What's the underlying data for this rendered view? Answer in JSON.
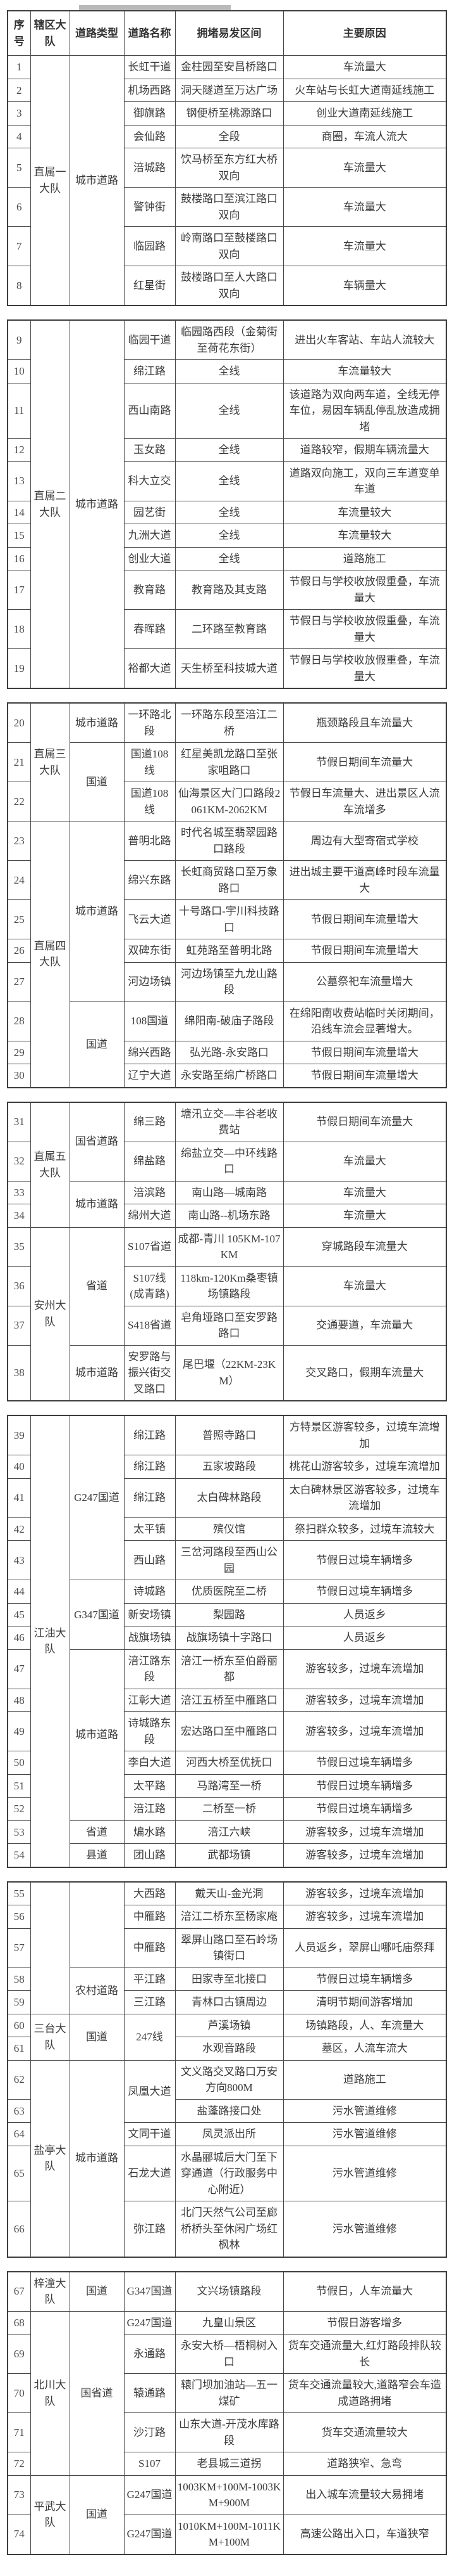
{
  "page": {
    "top_bar_color": "#b9b9b9",
    "text_color": "#3b3b3b",
    "border_color": "#474747"
  },
  "table": {
    "headers": [
      "序号",
      "辖区大队",
      "道路类型",
      "道路名称",
      "拥堵易发区间",
      "主要原因"
    ],
    "sections": [
      {
        "with_header": true,
        "rows": [
          [
            "1",
            {
              "t": "直属一大队",
              "rs": 8
            },
            {
              "t": "城市道路",
              "rs": 8
            },
            "长虹干道",
            "金柱园至安昌桥路口",
            "车流量大"
          ],
          [
            "2",
            null,
            null,
            "机场西路",
            "洞天隧道至万达广场",
            "火车站与长虹大道南延线施工"
          ],
          [
            "3",
            null,
            null,
            "御旗路",
            "钢便桥至桃源路口",
            "创业大道南延线施工"
          ],
          [
            "4",
            null,
            null,
            "会仙路",
            "全段",
            "商圈，车流人流大"
          ],
          [
            "5",
            null,
            null,
            "涪城路",
            "饮马桥至东方红大桥双向",
            "车流量大"
          ],
          [
            "6",
            null,
            null,
            "警钟街",
            "鼓楼路口至滨江路口双向",
            "车流量大"
          ],
          [
            "7",
            null,
            null,
            "临园路",
            "岭南路口至鼓楼路口双向",
            "车流量大"
          ],
          [
            "8",
            null,
            null,
            "红星街",
            "鼓楼路口至人大路口双向",
            "车辆量大"
          ]
        ]
      },
      {
        "with_header": false,
        "rows": [
          [
            "9",
            {
              "t": "直属二大队",
              "rs": 11
            },
            {
              "t": "城市道路",
              "rs": 11
            },
            "临园干道",
            "临园路西段（金菊街至荷花东街）",
            "进出火车客站、车站人流较大"
          ],
          [
            "10",
            null,
            null,
            "绵江路",
            "全线",
            "车流量较大"
          ],
          [
            "11",
            null,
            null,
            "西山南路",
            "全线",
            "该道路为双向两车道，全线无停车位，易因车辆乱停乱放造成拥堵"
          ],
          [
            "12",
            null,
            null,
            "玉女路",
            "全线",
            "道路较窄，假期车辆流量大"
          ],
          [
            "13",
            null,
            null,
            "科大立交",
            "全线",
            "道路双向施工，双向三车道变单车道"
          ],
          [
            "14",
            null,
            null,
            "园艺街",
            "全线",
            "车流量较大"
          ],
          [
            "15",
            null,
            null,
            "九洲大道",
            "全线",
            "车流量较大"
          ],
          [
            "16",
            null,
            null,
            "创业大道",
            "全线",
            "道路施工"
          ],
          [
            "17",
            null,
            null,
            "教育路",
            "教育路及其支路",
            "节假日与学校收放假重叠，车流量大"
          ],
          [
            "18",
            null,
            null,
            "春晖路",
            "二环路至教育路",
            "节假日与学校收放假重叠，车流量大"
          ],
          [
            "19",
            null,
            null,
            "裕都大道",
            "天生桥至科技城大道",
            "节假日与学校收放假重叠，车流量大"
          ]
        ]
      },
      {
        "with_header": false,
        "rows": [
          [
            "20",
            {
              "t": "直属三大队",
              "rs": 3
            },
            "城市道路",
            "一环路北段",
            "一环路东段至涪江二桥",
            "瓶颈路段且车流量大"
          ],
          [
            "21",
            null,
            {
              "t": "国道",
              "rs": 2
            },
            "国道108线",
            "红星美凯龙路口至张家咀路口",
            "节假日期间车流量大"
          ],
          [
            "22",
            null,
            null,
            "国道108线",
            "仙海景区大门口路段2061KM-2062KM",
            "节假日车流量大、进出景区人流车流增多"
          ],
          [
            "23",
            {
              "t": "直属四大队",
              "rs": 8
            },
            {
              "t": "城市道路",
              "rs": 5
            },
            "普明北路",
            "时代名城至翡翠园路口路段",
            "周边有大型寄宿式学校"
          ],
          [
            "24",
            null,
            null,
            "绵兴东路",
            "长虹商贸路口至万象路口",
            "进出城主要干道高峰时段车流量大"
          ],
          [
            "25",
            null,
            null,
            "飞云大道",
            "十号路口-宇川科技路口",
            "节假日期间车流量增大"
          ],
          [
            "26",
            null,
            null,
            "双碑东街",
            "虹苑路至普明北路",
            "节假日期间车流量增大"
          ],
          [
            "27",
            null,
            null,
            "河边场镇",
            "河边场镇至九龙山路段",
            "公墓祭祀车流量增大"
          ],
          [
            "28",
            null,
            {
              "t": "国道",
              "rs": 3
            },
            "108国道",
            "绵阳南-破庙子路段",
            "在绵阳南收费站临时关闭期间，沿线车流会显著增大。"
          ],
          [
            "29",
            null,
            null,
            "绵兴西路",
            "弘光路-永安路口",
            "节假日期间车流量增大"
          ],
          [
            "30",
            null,
            null,
            "辽宁大道",
            "永安路至绵广桥路口",
            "节假日期间车流量增大"
          ]
        ]
      },
      {
        "with_header": false,
        "rows": [
          [
            "31",
            {
              "t": "直属五大队",
              "rs": 4
            },
            {
              "t": "国省道路",
              "rs": 2
            },
            "绵三路",
            "塘汛立交—丰谷老收费站",
            "节假日期间车流量大"
          ],
          [
            "32",
            null,
            null,
            "绵盐路",
            "绵盐立交—中环线路口",
            "车流量大"
          ],
          [
            "33",
            null,
            {
              "t": "城市道路",
              "rs": 2
            },
            "涪滨路",
            "南山路—城南路",
            "车流量大"
          ],
          [
            "34",
            null,
            null,
            "绵州大道",
            "南山路--机场东路",
            "车流量大"
          ],
          [
            "35",
            {
              "t": "安州大队",
              "rs": 4
            },
            {
              "t": "省道",
              "rs": 3
            },
            "S107省道",
            "成都-青川 105KM-107KM",
            "穿城路段车流量大"
          ],
          [
            "36",
            null,
            null,
            "S107线(成青路)",
            "118km-120Km桑枣镇场镇路段",
            "车流量大"
          ],
          [
            "37",
            null,
            null,
            "S418省道",
            "皂角垭路口至安罗路路口",
            "交通要道，车流量大"
          ],
          [
            "38",
            null,
            "城市道路",
            "安罗路与振兴街交叉路口",
            "尾巴堰（22KM-23KM）",
            "交叉路口，假期车流量大"
          ]
        ]
      },
      {
        "with_header": false,
        "rows": [
          [
            "39",
            {
              "t": "江油大队",
              "rs": 16
            },
            {
              "t": "G247国道",
              "rs": 5
            },
            "绵江路",
            "普照寺路口",
            "方特景区游客较多，过境车流增加"
          ],
          [
            "40",
            null,
            null,
            "绵江路",
            "五家坡路段",
            "桃花山游客较多，过境车流增加"
          ],
          [
            "41",
            null,
            null,
            "绵江路",
            "太白碑林路段",
            "太白碑林景区游客较多，过境车流增加"
          ],
          [
            "42",
            null,
            null,
            "太平镇",
            "殡仪馆",
            "祭扫群众较多，过境车流较大"
          ],
          [
            "43",
            null,
            null,
            "西山路",
            "三岔河路段至西山公园",
            "节假日过境车辆增多"
          ],
          [
            "44",
            null,
            {
              "t": "G347国道",
              "rs": 3
            },
            "诗城路",
            "优质医院至二桥",
            "节假日过境车辆增多"
          ],
          [
            "45",
            null,
            null,
            "新安场镇",
            "梨园路",
            "人员返乡"
          ],
          [
            "46",
            null,
            null,
            "战旗场镇",
            "战旗场镇十字路口",
            "人员返乡"
          ],
          [
            "47",
            null,
            {
              "t": "城市道路",
              "rs": 6
            },
            "涪江路东段",
            "涪江一桥东至伯爵丽都",
            "游客较多，过境车流增加"
          ],
          [
            "48",
            null,
            null,
            "江彰大道",
            "涪江五桥至中雁路口",
            "游客较多，过境车流增加"
          ],
          [
            "49",
            null,
            null,
            "诗城路东段",
            "宏达路口至中雁路口",
            "游客较多，过境车流增加"
          ],
          [
            "50",
            null,
            null,
            "李白大道",
            "河西大桥至优抚口",
            "节假日过境车辆增多"
          ],
          [
            "51",
            null,
            null,
            "太平路",
            "马路湾至一桥",
            "节假日过境车辆增多"
          ],
          [
            "52",
            null,
            null,
            "涪江路",
            "二桥至一桥",
            "节假日过境车辆增多"
          ],
          [
            "53",
            null,
            "省道",
            "煸水路",
            "涪江六峡",
            "游客较多，过境车流增加"
          ],
          [
            "54",
            null,
            "县道",
            "团山路",
            "武都场镇",
            "游客较多，过境车流增加"
          ]
        ]
      },
      {
        "with_header": false,
        "rows": [
          [
            "55",
            {
              "t": "",
              "rs": 5
            },
            {
              "t": "",
              "rs": 3
            },
            "大西路",
            "戴天山-金光洞",
            "游客较多，过境车流增加"
          ],
          [
            "56",
            null,
            null,
            "中雁路",
            "涪江二桥东至杨家庵",
            "游客较多，过境车流增加"
          ],
          [
            "57",
            null,
            null,
            "中雁路",
            "翠屏山路口至石岭场镇街口",
            "人员返乡，翠屏山哪吒庙祭拜"
          ],
          [
            "58",
            null,
            {
              "t": "农村道路",
              "rs": 2
            },
            "平江路",
            "田家寺至北接口",
            "节假日过境车辆增多"
          ],
          [
            "59",
            null,
            null,
            "三江路",
            "青林口古镇周边",
            "清明节期间游客增加"
          ],
          [
            "60",
            {
              "t": "三台大队",
              "rs": 2
            },
            {
              "t": "国道",
              "rs": 2
            },
            {
              "t": "247线",
              "rs": 2
            },
            "芦溪场镇",
            "场镇路段，人、车流量大"
          ],
          [
            "61",
            null,
            null,
            null,
            "水观音路段",
            "墓区，人流车流大"
          ],
          [
            "62",
            {
              "t": "盐亭大队",
              "rs": 5
            },
            {
              "t": "城市道路",
              "rs": 5
            },
            {
              "t": "凤凰大道",
              "rs": 2
            },
            "文义路交叉路口万安方向800M",
            "道路施工"
          ],
          [
            "63",
            null,
            null,
            null,
            "盐蓬路接口处",
            "污水管道维修"
          ],
          [
            "64",
            null,
            null,
            "文同干道",
            "凤灵派出所",
            "污水管道维修"
          ],
          [
            "65",
            null,
            null,
            "石龙大道",
            "水晶郦城后大门至下穿通道（行政服务中心附近）",
            "污水管道维修"
          ],
          [
            "66",
            null,
            null,
            "弥江路",
            "北门天然气公司至廊桥桥头至休闲广场红枫林",
            "污水管道维修"
          ]
        ]
      },
      {
        "with_header": false,
        "rows": [
          [
            "67",
            "梓潼大队",
            "国道",
            "G347国道",
            "文兴场镇路段",
            "节假日，人车流量大"
          ],
          [
            "68",
            {
              "t": "北川大队",
              "rs": 5
            },
            {
              "t": "国省道",
              "rs": 5
            },
            "G247国道",
            "九皇山景区",
            "节假日游客增多"
          ],
          [
            "69",
            null,
            null,
            "永通路",
            "永安大桥—梧桐树入口",
            "货车交通流量大,红灯路段排队较长"
          ],
          [
            "70",
            null,
            null,
            "辕通路",
            "辕门坝加油站—五一煤矿",
            "货车交通流量较大,道路窄会车造成道路拥堵"
          ],
          [
            "71",
            null,
            null,
            "沙汀路",
            "山东大道-开茂水库路段",
            "货车交通流量较大"
          ],
          [
            "72",
            null,
            null,
            "S107",
            "老县城三道拐",
            "道路狭窄、急弯"
          ],
          [
            "73",
            {
              "t": "平武大队",
              "rs": 2
            },
            {
              "t": "国道",
              "rs": 2
            },
            "G247国道",
            "1003KM+100M-1003KM+900M",
            "出入城车流量较大易拥堵"
          ],
          [
            "74",
            null,
            null,
            "G247国道",
            "1010KM+100M-1011KM+100M",
            "高速公路出入口，车道狭窄"
          ]
        ]
      }
    ]
  }
}
